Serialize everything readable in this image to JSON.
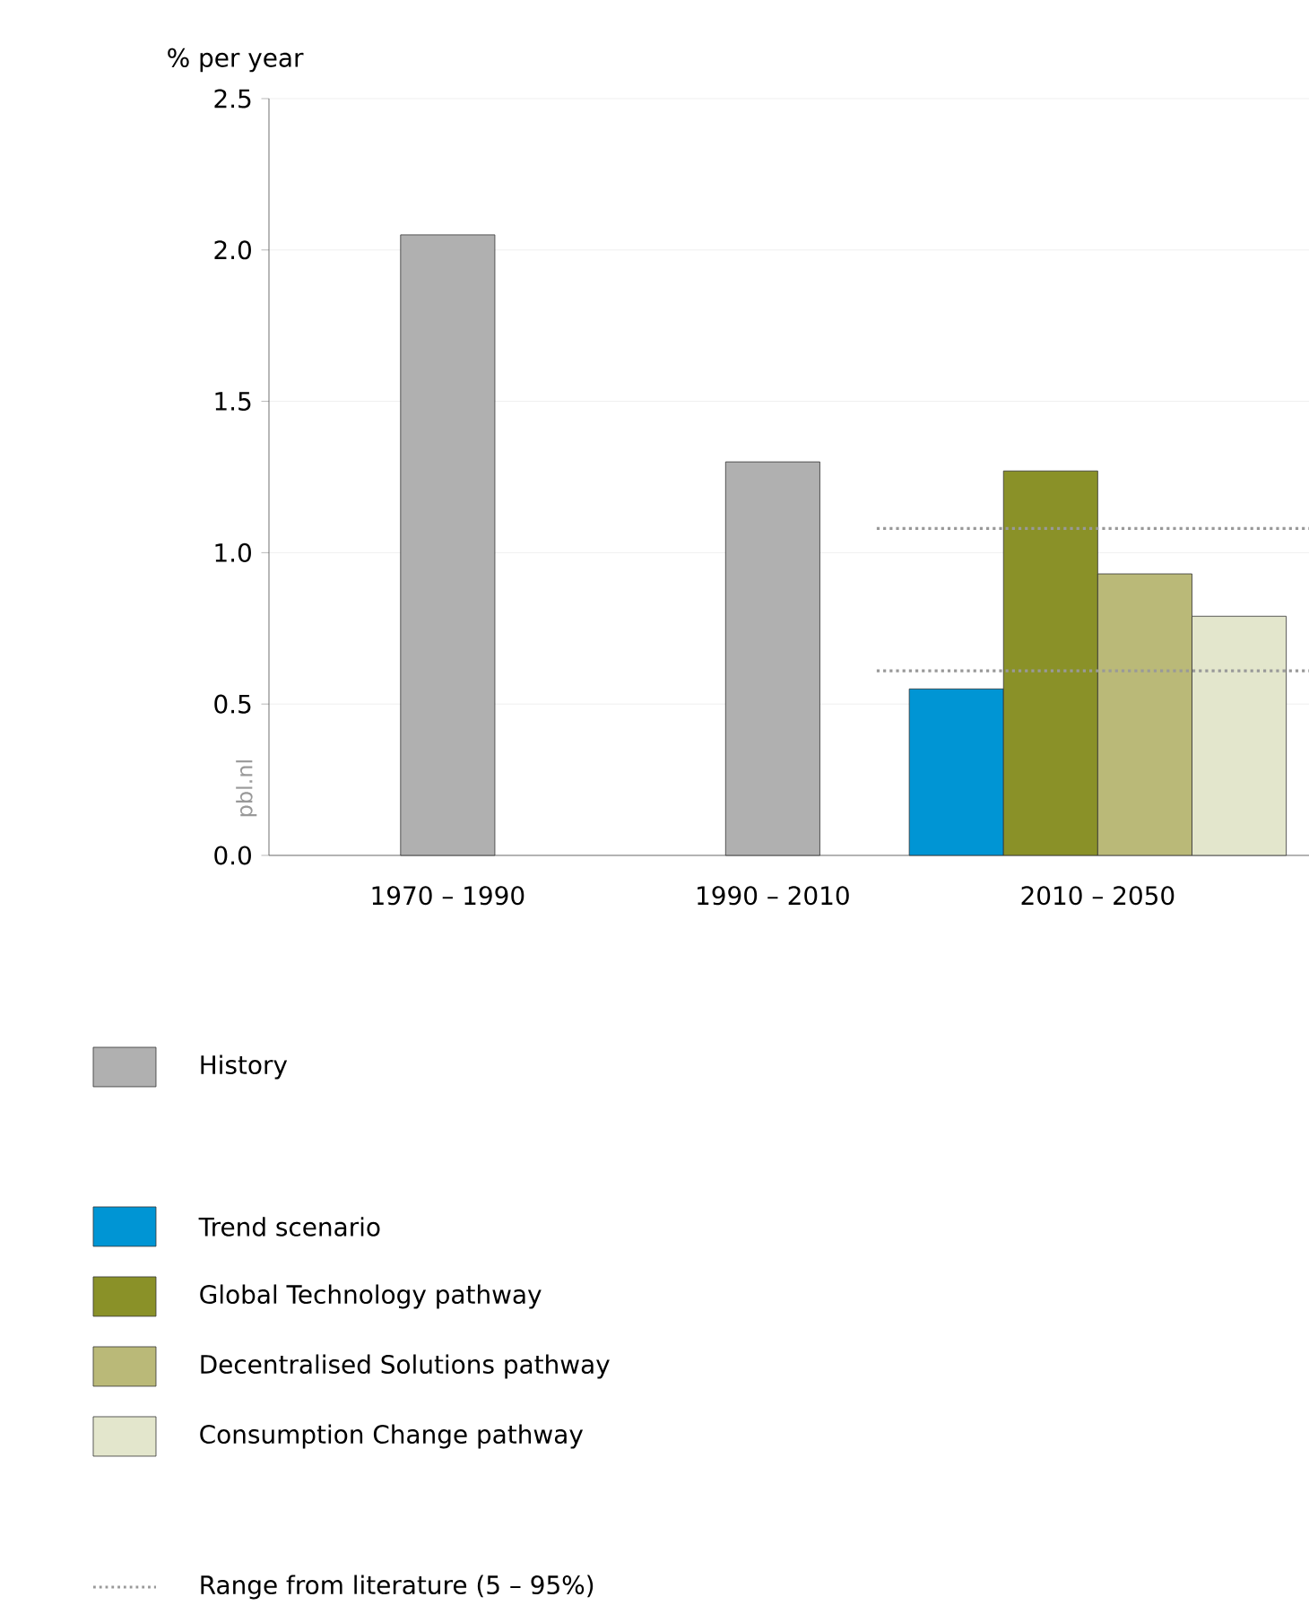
{
  "chart_data": {
    "type": "bar",
    "ylabel": "% per year",
    "categories": [
      "1970 – 1990",
      "1990 – 2010",
      "2010 – 2050"
    ],
    "series": [
      {
        "name": "History",
        "color": "#b0b0b0",
        "values": [
          2.05,
          1.3,
          null
        ]
      },
      {
        "name": "Trend scenario",
        "color": "#0095d4",
        "values": [
          null,
          null,
          0.55
        ]
      },
      {
        "name": "Global Technology pathway",
        "color": "#8a9128",
        "values": [
          null,
          null,
          1.27
        ]
      },
      {
        "name": "Decentralised Solutions pathway",
        "color": "#bab978",
        "values": [
          null,
          null,
          0.93
        ]
      },
      {
        "name": "Consumption Change pathway",
        "color": "#e3e6cc",
        "values": [
          null,
          null,
          0.79
        ]
      }
    ],
    "ylim": [
      0,
      2.5
    ],
    "yticks": [
      {
        "value": 0,
        "label": "0.0"
      },
      {
        "value": 0.5,
        "label": "0.5"
      },
      {
        "value": 1,
        "label": "1.0"
      },
      {
        "value": 1.5,
        "label": "1.5"
      },
      {
        "value": 2,
        "label": "2.0"
      },
      {
        "value": 2.5,
        "label": "2.5"
      }
    ],
    "grid": "y",
    "legend": "bottom",
    "ref_lines": [
      {
        "axis": "y",
        "value": 1.08,
        "label": "Range from literature (5 – 95%)",
        "color": "#999999",
        "line_style": "dotted"
      },
      {
        "axis": "y",
        "value": 0.61,
        "color": "#999999",
        "line_style": "dotted"
      }
    ],
    "annotations": [
      "pbl.nl"
    ]
  }
}
